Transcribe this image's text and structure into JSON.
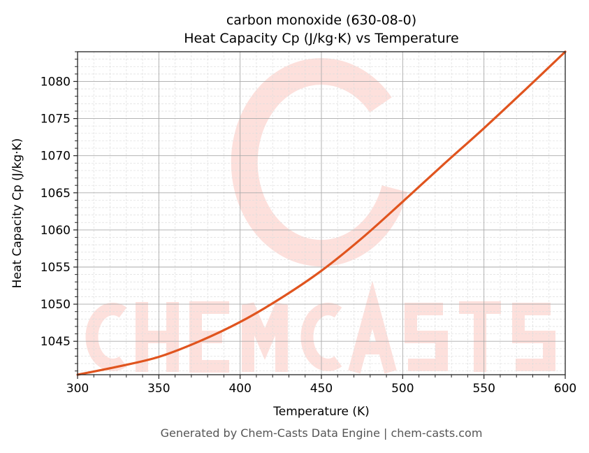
{
  "chart_data": {
    "type": "line",
    "title": "carbon monoxide (630-08-0)",
    "subtitle": "Heat Capacity Cp (J/kg·K) vs Temperature",
    "xlabel": "Temperature (K)",
    "ylabel": "Heat Capacity Cp (J/kg·K)",
    "xlim": [
      300,
      600
    ],
    "ylim": [
      1040.5,
      1084
    ],
    "xticks": [
      300,
      350,
      400,
      450,
      500,
      550,
      600
    ],
    "yticks": [
      1045,
      1050,
      1055,
      1060,
      1065,
      1070,
      1075,
      1080
    ],
    "grid": true,
    "series": [
      {
        "name": "Cp",
        "color": "#e0541e",
        "x": [
          300,
          325,
          350,
          375,
          400,
          425,
          450,
          475,
          500,
          525,
          550,
          575,
          600
        ],
        "y": [
          1040.5,
          1041.6,
          1042.9,
          1045.0,
          1047.6,
          1050.8,
          1054.5,
          1058.9,
          1063.8,
          1068.8,
          1073.7,
          1078.8,
          1084.0
        ]
      }
    ]
  },
  "watermark": "CHEMCASTS",
  "footer": "Generated by Chem-Casts Data Engine | chem-casts.com"
}
